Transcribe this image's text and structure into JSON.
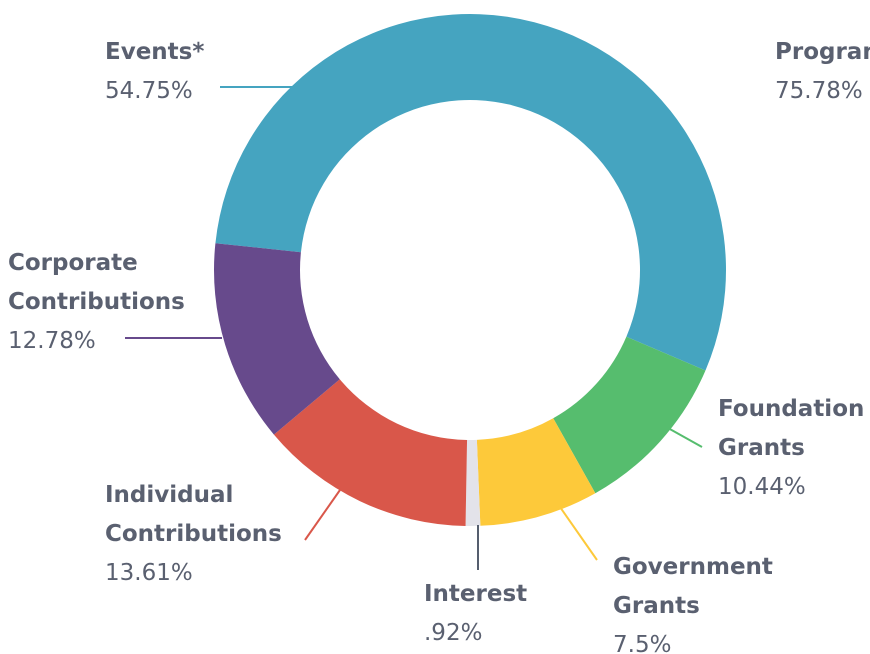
{
  "chart_data": {
    "type": "donut",
    "segments": [
      {
        "name": "Events*",
        "value": 54.75,
        "value_label": "54.75%",
        "color": "#45a4c0"
      },
      {
        "name": "Foundation Grants",
        "value": 10.44,
        "value_label": "10.44%",
        "color": "#56bd6e"
      },
      {
        "name": "Government Grants",
        "value": 7.5,
        "value_label": "7.5%",
        "color": "#fdc93a"
      },
      {
        "name": "Interest",
        "value": 0.92,
        "value_label": ".92%",
        "color": "#e3e3ea"
      },
      {
        "name": "Individual Contributions",
        "value": 13.61,
        "value_label": "13.61%",
        "color": "#d9574a"
      },
      {
        "name": "Corporate Contributions",
        "value": 12.78,
        "value_label": "12.78%",
        "color": "#674a8c"
      }
    ],
    "extra_label": {
      "name": "Program",
      "value": 75.78,
      "value_label": "75.78%"
    }
  }
}
